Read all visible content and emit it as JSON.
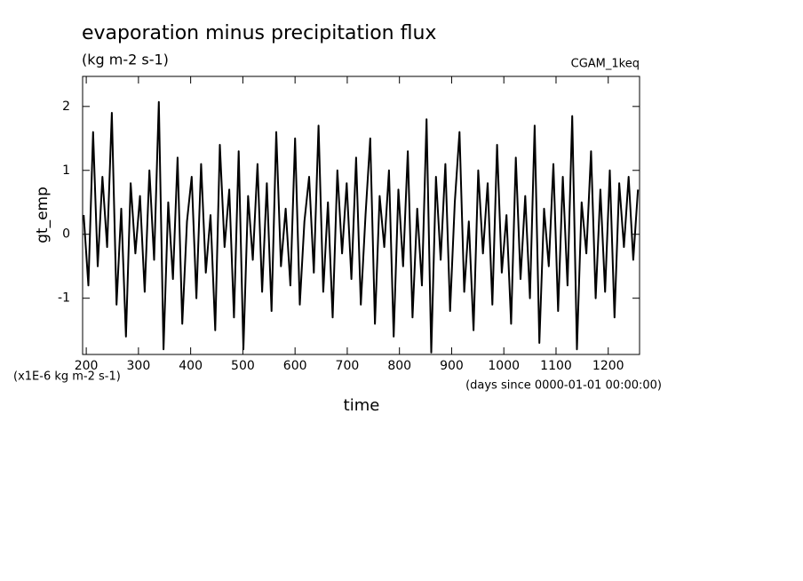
{
  "chart_data": {
    "type": "line",
    "title": "evaporation minus precipitation flux",
    "subtitle": "(kg m-2 s-1)",
    "annotation": "CGAM_1keq",
    "ylabel": "gt_emp",
    "yunits": "(x1E-6 kg m-2 s-1)",
    "xunits": "(days since 0000-01-01 00:00:00)",
    "xlabel": "time",
    "color": "#000000",
    "xlim": [
      193,
      1260
    ],
    "ylim": [
      -1.88,
      2.47
    ],
    "xticks": [
      200,
      300,
      400,
      500,
      600,
      700,
      800,
      900,
      1000,
      1100,
      1200
    ],
    "yticks": [
      -1,
      0,
      1,
      2
    ],
    "x": [
      195,
      204,
      213,
      222,
      231,
      240,
      249,
      258,
      267,
      276,
      285,
      294,
      303,
      312,
      321,
      330,
      339,
      348,
      357,
      366,
      375,
      384,
      393,
      402,
      411,
      420,
      429,
      438,
      447,
      456,
      465,
      474,
      483,
      492,
      501,
      510,
      519,
      528,
      537,
      546,
      555,
      564,
      573,
      582,
      591,
      600,
      609,
      618,
      627,
      636,
      645,
      654,
      663,
      672,
      681,
      690,
      699,
      708,
      717,
      726,
      735,
      744,
      753,
      762,
      771,
      780,
      789,
      798,
      807,
      816,
      825,
      834,
      843,
      852,
      861,
      870,
      879,
      888,
      897,
      906,
      915,
      924,
      933,
      942,
      951,
      960,
      969,
      978,
      987,
      996,
      1005,
      1014,
      1023,
      1032,
      1041,
      1050,
      1059,
      1068,
      1077,
      1086,
      1095,
      1104,
      1113,
      1122,
      1131,
      1140,
      1149,
      1158,
      1167,
      1176,
      1185,
      1194,
      1203,
      1212,
      1221,
      1230,
      1239,
      1248,
      1257
    ],
    "values": [
      0.3,
      -0.8,
      1.6,
      -0.5,
      0.9,
      -0.2,
      1.9,
      -1.1,
      0.4,
      -1.6,
      0.8,
      -0.3,
      0.6,
      -0.9,
      1.0,
      -0.4,
      2.07,
      -1.8,
      0.5,
      -0.7,
      1.2,
      -1.4,
      0.2,
      0.9,
      -1.0,
      1.1,
      -0.6,
      0.3,
      -1.5,
      1.4,
      -0.2,
      0.7,
      -1.3,
      1.3,
      -1.8,
      0.6,
      -0.4,
      1.1,
      -0.9,
      0.8,
      -1.2,
      1.6,
      -0.5,
      0.4,
      -0.8,
      1.5,
      -1.1,
      0.2,
      0.9,
      -0.6,
      1.7,
      -0.9,
      0.5,
      -1.3,
      1.0,
      -0.3,
      0.8,
      -0.7,
      1.2,
      -1.1,
      0.3,
      1.5,
      -1.4,
      0.6,
      -0.2,
      1.0,
      -1.6,
      0.7,
      -0.5,
      1.3,
      -1.3,
      0.4,
      -0.8,
      1.8,
      -1.85,
      0.9,
      -0.4,
      1.1,
      -1.2,
      0.5,
      1.6,
      -0.9,
      0.2,
      -1.5,
      1.0,
      -0.3,
      0.8,
      -1.1,
      1.4,
      -0.6,
      0.3,
      -1.4,
      1.2,
      -0.7,
      0.6,
      -1.0,
      1.7,
      -1.7,
      0.4,
      -0.5,
      1.1,
      -1.2,
      0.9,
      -0.8,
      1.85,
      -1.8,
      0.5,
      -0.3,
      1.3,
      -1.0,
      0.7,
      -0.9,
      1.0,
      -1.3,
      0.8,
      -0.2,
      0.9,
      -0.4,
      0.7
    ]
  }
}
